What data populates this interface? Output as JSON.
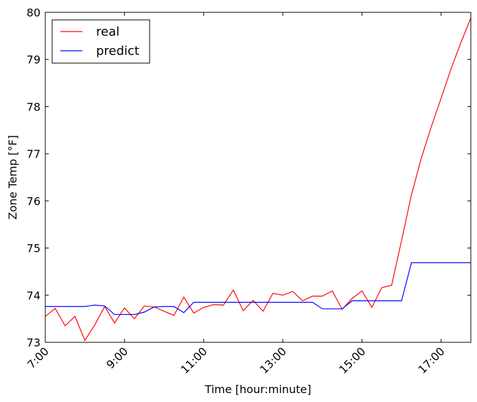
{
  "chart_data": {
    "type": "line",
    "title": "",
    "xlabel": "Time [hour:minute]",
    "ylabel": "Zone Temp [°F]",
    "xlim": [
      7.0,
      17.75
    ],
    "ylim": [
      73,
      80
    ],
    "x_ticks": [
      {
        "value": 7,
        "label": "7:00"
      },
      {
        "value": 9,
        "label": "9:00"
      },
      {
        "value": 11,
        "label": "11:00"
      },
      {
        "value": 13,
        "label": "13:00"
      },
      {
        "value": 15,
        "label": "15:00"
      },
      {
        "value": 17,
        "label": "17:00"
      }
    ],
    "y_ticks": [
      {
        "value": 73,
        "label": "73"
      },
      {
        "value": 74,
        "label": "74"
      },
      {
        "value": 75,
        "label": "75"
      },
      {
        "value": 76,
        "label": "76"
      },
      {
        "value": 77,
        "label": "77"
      },
      {
        "value": 78,
        "label": "78"
      },
      {
        "value": 79,
        "label": "79"
      },
      {
        "value": 80,
        "label": "80"
      }
    ],
    "grid": false,
    "legend_position": "top-left",
    "series": [
      {
        "name": "real",
        "color": "#ff0000",
        "points": [
          [
            7.0,
            73.55
          ],
          [
            7.25,
            73.72
          ],
          [
            7.5,
            73.35
          ],
          [
            7.75,
            73.55
          ],
          [
            8.0,
            73.04
          ],
          [
            8.25,
            73.37
          ],
          [
            8.5,
            73.76
          ],
          [
            8.75,
            73.41
          ],
          [
            9.0,
            73.73
          ],
          [
            9.25,
            73.5
          ],
          [
            9.5,
            73.77
          ],
          [
            9.75,
            73.75
          ],
          [
            10.0,
            73.66
          ],
          [
            10.25,
            73.57
          ],
          [
            10.5,
            73.96
          ],
          [
            10.75,
            73.62
          ],
          [
            11.0,
            73.74
          ],
          [
            11.25,
            73.8
          ],
          [
            11.5,
            73.79
          ],
          [
            11.75,
            74.11
          ],
          [
            12.0,
            73.67
          ],
          [
            12.25,
            73.89
          ],
          [
            12.5,
            73.66
          ],
          [
            12.75,
            74.04
          ],
          [
            13.0,
            74.0
          ],
          [
            13.25,
            74.08
          ],
          [
            13.5,
            73.88
          ],
          [
            13.75,
            73.98
          ],
          [
            14.0,
            73.98
          ],
          [
            14.25,
            74.09
          ],
          [
            14.5,
            73.7
          ],
          [
            14.75,
            73.93
          ],
          [
            15.0,
            74.09
          ],
          [
            15.25,
            73.74
          ],
          [
            15.5,
            74.16
          ],
          [
            15.75,
            74.21
          ],
          [
            16.0,
            75.16
          ],
          [
            16.25,
            76.13
          ],
          [
            16.5,
            76.91
          ],
          [
            16.75,
            77.57
          ],
          [
            17.0,
            78.18
          ],
          [
            17.25,
            78.8
          ],
          [
            17.5,
            79.36
          ],
          [
            17.75,
            79.88
          ]
        ]
      },
      {
        "name": "predict",
        "color": "#0000ff",
        "points": [
          [
            7.0,
            73.76
          ],
          [
            7.25,
            73.76
          ],
          [
            7.5,
            73.76
          ],
          [
            7.75,
            73.76
          ],
          [
            8.0,
            73.76
          ],
          [
            8.25,
            73.79
          ],
          [
            8.5,
            73.77
          ],
          [
            8.75,
            73.59
          ],
          [
            9.0,
            73.59
          ],
          [
            9.25,
            73.59
          ],
          [
            9.5,
            73.64
          ],
          [
            9.75,
            73.75
          ],
          [
            10.0,
            73.76
          ],
          [
            10.25,
            73.76
          ],
          [
            10.5,
            73.63
          ],
          [
            10.75,
            73.85
          ],
          [
            11.0,
            73.85
          ],
          [
            11.25,
            73.85
          ],
          [
            11.5,
            73.85
          ],
          [
            11.75,
            73.85
          ],
          [
            12.0,
            73.85
          ],
          [
            12.25,
            73.85
          ],
          [
            12.5,
            73.85
          ],
          [
            12.75,
            73.85
          ],
          [
            13.0,
            73.85
          ],
          [
            13.25,
            73.85
          ],
          [
            13.5,
            73.85
          ],
          [
            13.75,
            73.85
          ],
          [
            14.0,
            73.71
          ],
          [
            14.25,
            73.71
          ],
          [
            14.5,
            73.71
          ],
          [
            14.75,
            73.88
          ],
          [
            15.0,
            73.88
          ],
          [
            15.25,
            73.88
          ],
          [
            15.5,
            73.88
          ],
          [
            15.75,
            73.88
          ],
          [
            16.0,
            73.88
          ],
          [
            16.25,
            74.69
          ],
          [
            16.5,
            74.69
          ],
          [
            16.75,
            74.69
          ],
          [
            17.0,
            74.69
          ],
          [
            17.25,
            74.69
          ],
          [
            17.5,
            74.69
          ],
          [
            17.75,
            74.69
          ]
        ]
      }
    ]
  }
}
